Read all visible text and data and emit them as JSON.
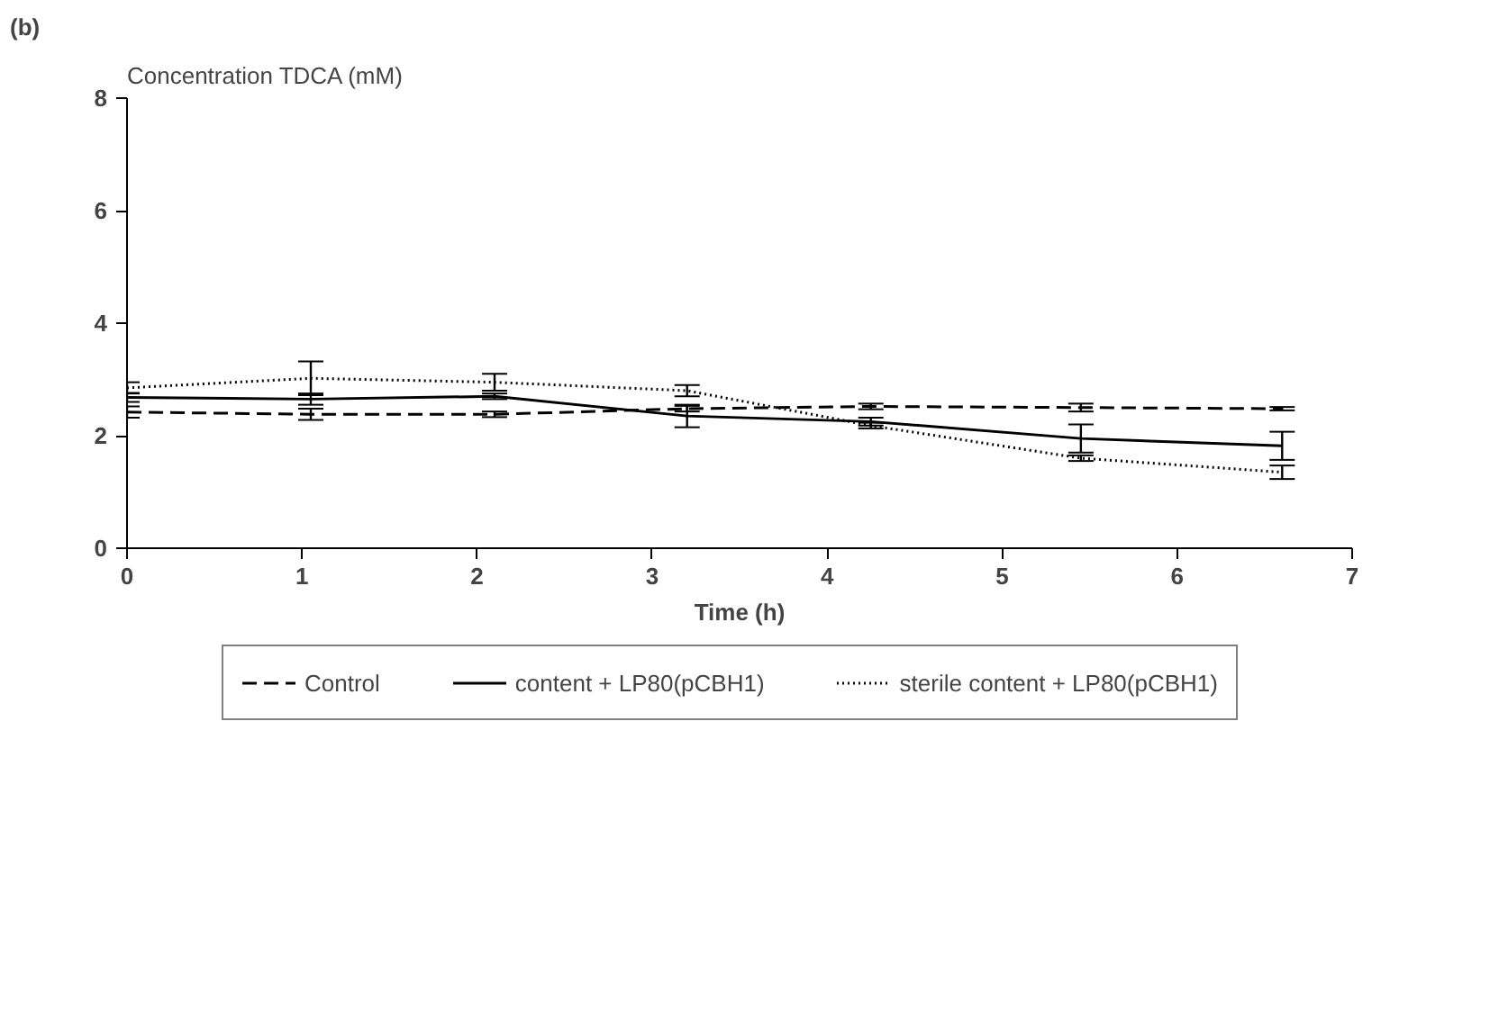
{
  "chart_data": {
    "type": "line",
    "ylabel": "Concentration TDCA (mM)",
    "xlabel": "Time (h)",
    "annotations": [
      "(b)"
    ],
    "x": [
      0,
      1.05,
      2.1,
      3.2,
      4.25,
      5.45,
      6.6
    ],
    "xlim": [
      0,
      7
    ],
    "xticks": [
      0,
      1,
      2,
      3,
      4,
      5,
      6,
      7
    ],
    "ylim": [
      0,
      8
    ],
    "yticks": [
      0,
      2,
      4,
      6,
      8
    ],
    "grid": false,
    "legend": "bottom",
    "marker": "none",
    "series": [
      {
        "name": "Control",
        "color": "#000000",
        "line_style": "dashed",
        "values": [
          2.42,
          2.38,
          2.38,
          2.48,
          2.52,
          2.5,
          2.48
        ],
        "errors": [
          0.1,
          0.1,
          0.05,
          0.05,
          0.05,
          0.07,
          0.03
        ]
      },
      {
        "name": "content + LP80(pCBH1)",
        "color": "#000000",
        "line_style": "solid",
        "values": [
          2.68,
          2.65,
          2.7,
          2.35,
          2.25,
          1.95,
          1.82
        ],
        "errors": [
          0.08,
          0.1,
          0.05,
          0.2,
          0.07,
          0.25,
          0.25
        ]
      },
      {
        "name": "sterile content + LP80(pCBH1)",
        "color": "#000000",
        "line_style": "dotted",
        "values": [
          2.85,
          3.02,
          2.95,
          2.8,
          2.18,
          1.6,
          1.35
        ],
        "errors": [
          0.1,
          0.3,
          0.15,
          0.1,
          0.05,
          0.05,
          0.12
        ]
      }
    ]
  }
}
